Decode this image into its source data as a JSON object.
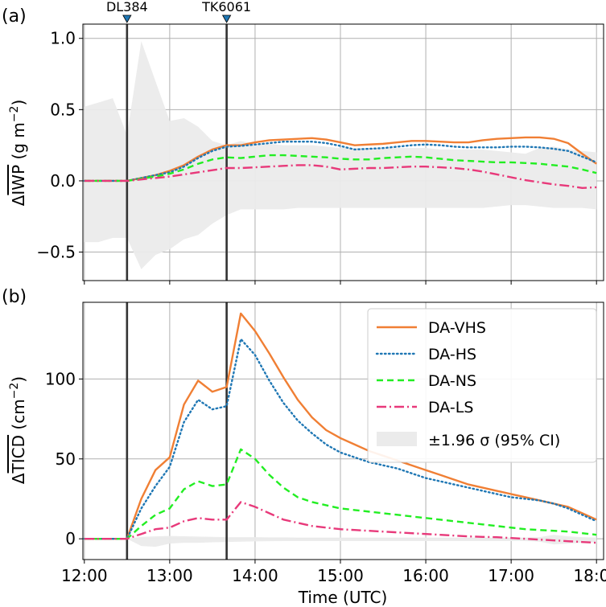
{
  "chart_data": [
    {
      "type": "line",
      "panel_label": "(a)",
      "ylabel_prefix": "Δ",
      "ylabel_var": "IWP",
      "ylabel_units": " (g m",
      "ylabel_exp": "−2",
      "ylabel_close": ")",
      "ylim": [
        -0.7,
        1.1
      ],
      "yticks": [
        -0.5,
        0.0,
        0.5,
        1.0
      ],
      "ytick_labels": [
        "−0.5",
        "0.0",
        "0.5",
        "1.0"
      ],
      "grid": true,
      "events": [
        {
          "label": "DL384",
          "x": 12.5
        },
        {
          "label": "TK6061",
          "x": 13.667
        }
      ],
      "x": [
        12.0,
        12.167,
        12.333,
        12.5,
        12.667,
        12.833,
        13.0,
        13.167,
        13.333,
        13.5,
        13.667,
        13.833,
        14.0,
        14.167,
        14.333,
        14.5,
        14.667,
        14.833,
        15.0,
        15.167,
        15.333,
        15.5,
        15.667,
        15.833,
        16.0,
        16.167,
        16.333,
        16.5,
        16.667,
        16.833,
        17.0,
        17.167,
        17.333,
        17.5,
        17.667,
        17.833,
        18.0
      ],
      "series": [
        {
          "name": "DA-VHS",
          "color": "#f07f34",
          "style": "solid",
          "values": [
            0,
            0,
            0,
            0,
            0.02,
            0.04,
            0.07,
            0.11,
            0.17,
            0.22,
            0.25,
            0.25,
            0.27,
            0.285,
            0.29,
            0.295,
            0.3,
            0.29,
            0.27,
            0.25,
            0.255,
            0.26,
            0.27,
            0.28,
            0.28,
            0.275,
            0.27,
            0.27,
            0.285,
            0.295,
            0.3,
            0.305,
            0.305,
            0.295,
            0.265,
            0.19,
            0.12
          ]
        },
        {
          "name": "DA-HS",
          "color": "#1f77b4",
          "style": "dotted",
          "values": [
            0,
            0,
            0,
            0,
            0.02,
            0.04,
            0.06,
            0.1,
            0.16,
            0.21,
            0.24,
            0.245,
            0.255,
            0.265,
            0.275,
            0.275,
            0.275,
            0.265,
            0.245,
            0.22,
            0.225,
            0.23,
            0.24,
            0.25,
            0.255,
            0.25,
            0.24,
            0.235,
            0.235,
            0.235,
            0.24,
            0.24,
            0.235,
            0.225,
            0.21,
            0.17,
            0.13
          ]
        },
        {
          "name": "DA-NS",
          "color": "#22ee22",
          "style": "dashed",
          "values": [
            0,
            0,
            0,
            0,
            0.015,
            0.03,
            0.05,
            0.08,
            0.12,
            0.15,
            0.165,
            0.16,
            0.17,
            0.18,
            0.18,
            0.175,
            0.17,
            0.165,
            0.155,
            0.15,
            0.15,
            0.16,
            0.165,
            0.17,
            0.165,
            0.155,
            0.145,
            0.14,
            0.135,
            0.13,
            0.13,
            0.125,
            0.12,
            0.11,
            0.1,
            0.08,
            0.055
          ]
        },
        {
          "name": "DA-LS",
          "color": "#e8397a",
          "style": "dashdot",
          "values": [
            0,
            0,
            0,
            0,
            0.01,
            0.02,
            0.03,
            0.045,
            0.06,
            0.075,
            0.09,
            0.09,
            0.095,
            0.1,
            0.105,
            0.11,
            0.11,
            0.1,
            0.08,
            0.085,
            0.09,
            0.09,
            0.095,
            0.1,
            0.1,
            0.095,
            0.09,
            0.08,
            0.065,
            0.045,
            0.025,
            0.005,
            -0.01,
            -0.025,
            -0.035,
            -0.05,
            -0.045
          ]
        }
      ],
      "ci_upper": [
        0.52,
        0.55,
        0.58,
        0.32,
        0.98,
        0.7,
        0.42,
        0.44,
        0.38,
        0.28,
        0.25,
        0.28,
        0.26,
        0.26,
        0.25,
        0.25,
        0.25,
        0.24,
        0.23,
        0.23,
        0.23,
        0.23,
        0.23,
        0.23,
        0.23,
        0.22,
        0.22,
        0.22,
        0.22,
        0.21,
        0.2,
        0.19,
        0.23,
        0.24,
        0.22,
        0.21,
        0.2
      ],
      "ci_lower": [
        -0.43,
        -0.43,
        -0.4,
        -0.4,
        -0.62,
        -0.52,
        -0.48,
        -0.41,
        -0.38,
        -0.3,
        -0.24,
        -0.2,
        -0.2,
        -0.2,
        -0.2,
        -0.19,
        -0.19,
        -0.19,
        -0.19,
        -0.19,
        -0.19,
        -0.19,
        -0.19,
        -0.19,
        -0.19,
        -0.19,
        -0.19,
        -0.19,
        -0.19,
        -0.18,
        -0.17,
        -0.17,
        -0.18,
        -0.19,
        -0.19,
        -0.19,
        -0.2
      ]
    },
    {
      "type": "line",
      "panel_label": "(b)",
      "ylabel_prefix": "Δ",
      "ylabel_var": "TICD",
      "ylabel_units": " (cm",
      "ylabel_exp": "−2",
      "ylabel_close": ")",
      "xlabel": "Time (UTC)",
      "xtick_labels": [
        "12:00",
        "13:00",
        "14:00",
        "15:00",
        "16:00",
        "17:00",
        "18:00"
      ],
      "xticks": [
        12,
        13,
        14,
        15,
        16,
        17,
        18
      ],
      "xlim": [
        11.983,
        18.083
      ],
      "ylim": [
        -13,
        148
      ],
      "yticks": [
        0,
        50,
        100
      ],
      "ytick_labels": [
        "0",
        "50",
        "100"
      ],
      "grid": true,
      "legend_position": "upper-right",
      "ci_legend_label": "±1.96 σ (95% CI)",
      "ci_color": "#ebebeb",
      "events": [
        {
          "label": "DL384",
          "x": 12.5
        },
        {
          "label": "TK6061",
          "x": 13.667
        }
      ],
      "x": [
        12.0,
        12.167,
        12.333,
        12.5,
        12.667,
        12.833,
        13.0,
        13.167,
        13.333,
        13.5,
        13.667,
        13.833,
        14.0,
        14.167,
        14.333,
        14.5,
        14.667,
        14.833,
        15.0,
        15.167,
        15.333,
        15.5,
        15.667,
        15.833,
        16.0,
        16.167,
        16.333,
        16.5,
        16.667,
        16.833,
        17.0,
        17.167,
        17.333,
        17.5,
        17.667,
        17.833,
        18.0
      ],
      "series": [
        {
          "name": "DA-VHS",
          "color": "#f07f34",
          "style": "solid",
          "values": [
            0,
            0,
            0,
            0,
            25,
            43,
            51,
            84,
            99,
            92,
            95,
            141,
            130,
            116,
            101,
            87,
            76,
            68,
            63,
            59,
            55,
            52,
            49,
            46,
            43,
            40,
            37,
            34,
            32,
            30,
            28,
            26,
            24,
            22,
            20,
            16,
            12
          ]
        },
        {
          "name": "DA-HS",
          "color": "#1f77b4",
          "style": "dotted",
          "values": [
            0,
            0,
            0,
            0,
            19,
            33,
            45,
            73,
            87,
            81,
            83,
            125,
            115,
            99,
            85,
            74,
            66,
            59,
            54,
            51,
            48,
            46,
            44,
            41,
            38,
            36,
            34,
            32,
            30,
            28,
            26,
            25,
            24,
            22,
            19,
            15,
            11
          ]
        },
        {
          "name": "DA-NS",
          "color": "#22ee22",
          "style": "dashed",
          "values": [
            0,
            0,
            0,
            0,
            8,
            15,
            19,
            31,
            36,
            33,
            34,
            56,
            50,
            40,
            32,
            26,
            23,
            21,
            19,
            18,
            17,
            16,
            15,
            14,
            13,
            12,
            11,
            10,
            9,
            8,
            7,
            6,
            5.5,
            5,
            4.5,
            3.5,
            2.5
          ]
        },
        {
          "name": "DA-LS",
          "color": "#e8397a",
          "style": "dashdot",
          "values": [
            0,
            0,
            0,
            0,
            3,
            6,
            7,
            11,
            13,
            12,
            12,
            23,
            20,
            16,
            12,
            10,
            8,
            7,
            6,
            5.5,
            5,
            4.5,
            4,
            3.5,
            3,
            2.5,
            2,
            1.5,
            1.2,
            1,
            0.5,
            0,
            -0.5,
            -1,
            -1.5,
            -2,
            -2.5
          ]
        }
      ],
      "ci_upper": [
        0,
        0,
        0,
        0,
        1.2,
        1.5,
        1.8,
        1.6,
        1.4,
        1.2,
        1.0,
        1.0,
        1.0,
        0.9,
        0.9,
        0.8,
        0.8,
        0.8,
        0.8,
        0.8,
        0.8,
        0.8,
        0.8,
        0.8,
        0.8,
        0.8,
        0.8,
        0.8,
        0.8,
        0.8,
        0.8,
        0.8,
        1.0,
        2.5,
        1.5,
        1.0,
        0.8
      ],
      "ci_lower": [
        0,
        0,
        0,
        0,
        -4.5,
        -5,
        -3,
        -2.5,
        -2.5,
        -2.2,
        -2.0,
        -1.8,
        -1.6,
        -1.5,
        -1.4,
        -1.4,
        -1.4,
        -1.4,
        -1.4,
        -1.4,
        -1.4,
        -1.4,
        -1.4,
        -1.4,
        -1.4,
        -1.4,
        -1.4,
        -1.4,
        -1.4,
        -1.4,
        -1.4,
        -1.4,
        -1.8,
        -3.5,
        -3.0,
        -2.5,
        -2.2
      ]
    }
  ]
}
